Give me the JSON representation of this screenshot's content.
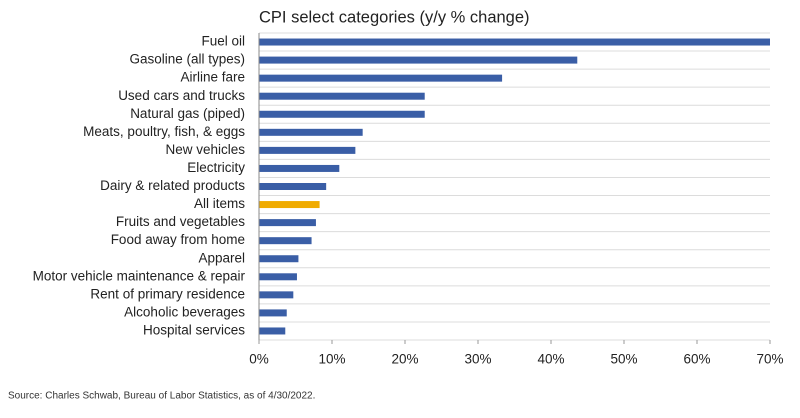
{
  "chart_data": {
    "type": "bar",
    "orientation": "horizontal",
    "title": "CPI select categories (y/y % change)",
    "categories": [
      "Fuel oil",
      "Gasoline (all types)",
      "Airline fare",
      "Used cars and trucks",
      "Natural gas (piped)",
      "Meats, poultry, fish, & eggs",
      "New vehicles",
      "Electricity",
      "Dairy & related products",
      "All items",
      "Fruits and vegetables",
      "Food away from home",
      "Apparel",
      "Motor vehicle maintenance & repair",
      "Rent of primary residence",
      "Alcoholic beverages",
      "Hospital services"
    ],
    "values": [
      70,
      43.6,
      33.3,
      22.7,
      22.7,
      14.2,
      13.2,
      11.0,
      9.2,
      8.3,
      7.8,
      7.2,
      5.4,
      5.2,
      4.7,
      3.8,
      3.6
    ],
    "colors": [
      "#3a5ea6",
      "#3a5ea6",
      "#3a5ea6",
      "#3a5ea6",
      "#3a5ea6",
      "#3a5ea6",
      "#3a5ea6",
      "#3a5ea6",
      "#3a5ea6",
      "#f0ab00",
      "#3a5ea6",
      "#3a5ea6",
      "#3a5ea6",
      "#3a5ea6",
      "#3a5ea6",
      "#3a5ea6",
      "#3a5ea6"
    ],
    "xlim": [
      0,
      70
    ],
    "xticks": [
      {
        "value": 0,
        "label": "0%"
      },
      {
        "value": 10,
        "label": "10%"
      },
      {
        "value": 20,
        "label": "20%"
      },
      {
        "value": 30,
        "label": "30%"
      },
      {
        "value": 40,
        "label": "40%"
      },
      {
        "value": 50,
        "label": "50%"
      },
      {
        "value": 60,
        "label": "60%"
      },
      {
        "value": 70,
        "label": "70%"
      }
    ],
    "source": "Source: Charles Schwab, Bureau of Labor Statistics, as of 4/30/2022."
  }
}
